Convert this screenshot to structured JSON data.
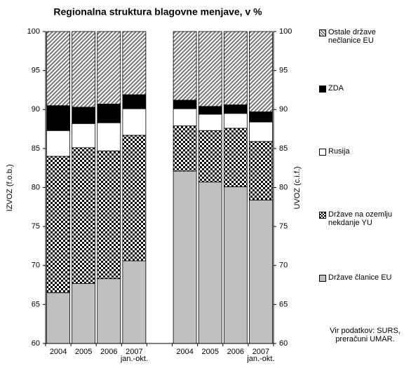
{
  "chart_data": {
    "type": "stacked_bar",
    "title": "Regionalna struktura blagovne menjave, v %",
    "y_label": "IZVOZ (f.o.b.)",
    "y2_label": "UVOZ (c.i.f.)",
    "categories": [
      "2004",
      "2005",
      "2006",
      "2007 jan.-okt.",
      null,
      "2004",
      "2005",
      "2006",
      "2007 jan.-okt."
    ],
    "ylim": [
      60,
      100
    ],
    "yticks": [
      60,
      65,
      70,
      75,
      80,
      85,
      90,
      95,
      100
    ],
    "y2lim": [
      60,
      100
    ],
    "y2ticks": [
      60,
      65,
      70,
      75,
      80,
      85,
      90,
      95,
      100
    ],
    "series": [
      {
        "name": "Države članice EU",
        "color": "#c0c0c0",
        "values": [
          66.5,
          67.7,
          68.3,
          70.6,
          null,
          82.1,
          80.7,
          80.1,
          78.4
        ]
      },
      {
        "name": "Države na ozemlju nekdanje YU",
        "color": "checker",
        "values": [
          17.5,
          17.4,
          16.4,
          16.1,
          null,
          5.8,
          6.6,
          7.5,
          7.5
        ]
      },
      {
        "name": "Rusija",
        "color": "#ffffff",
        "values": [
          3.3,
          3.1,
          3.6,
          3.4,
          null,
          2.2,
          2.1,
          1.9,
          2.5
        ]
      },
      {
        "name": "ZDA",
        "color": "#000000",
        "values": [
          3.2,
          2.1,
          2.4,
          1.8,
          null,
          1.1,
          1.0,
          1.1,
          1.3
        ]
      },
      {
        "name": "Ostale države nečlanice EU",
        "color": "hatch",
        "values": [
          9.5,
          9.7,
          9.3,
          8.1,
          null,
          8.8,
          9.6,
          9.4,
          10.3
        ]
      }
    ],
    "source": [
      "Vir podatkov: SURS,",
      "preračuni UMAR."
    ]
  }
}
